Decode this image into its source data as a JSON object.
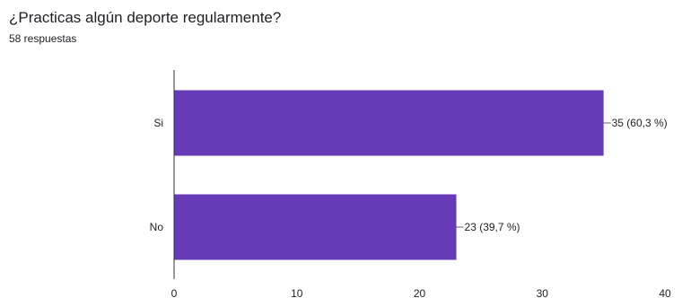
{
  "question": {
    "title": "¿Practicas algún deporte regularmente?",
    "responses": "58 respuestas"
  },
  "colors": {
    "bar": "#673ab7",
    "axis": "#333333",
    "text": "#202124"
  },
  "chart_data": {
    "type": "bar",
    "orientation": "horizontal",
    "categories": [
      "Si",
      "No"
    ],
    "values": [
      35,
      23
    ],
    "data_labels": [
      "35 (60,3 %)",
      "23 (39,7 %)"
    ],
    "x_ticks": [
      "0",
      "10",
      "20",
      "30",
      "40"
    ],
    "xlim": [
      0,
      40
    ],
    "grid": false,
    "legend": "none"
  }
}
